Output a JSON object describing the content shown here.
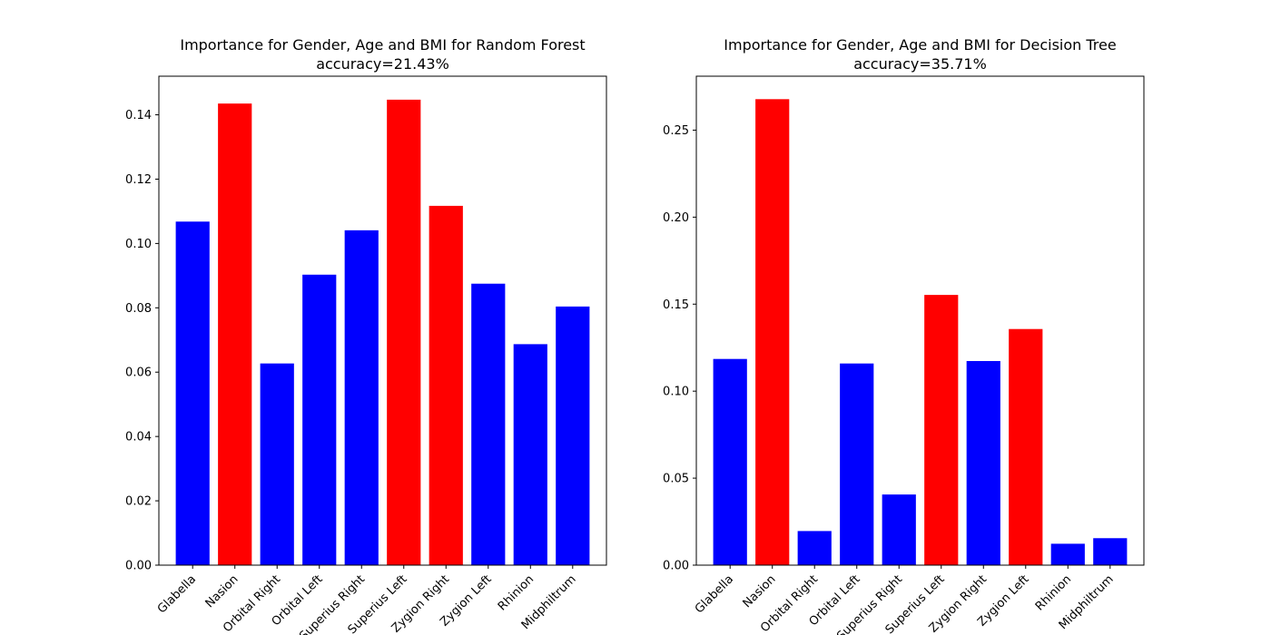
{
  "chart_data": [
    {
      "type": "bar",
      "title": "Importance for Gender, Age and BMI for Random Forest",
      "subtitle": "accuracy=21.43%",
      "xlabel": "",
      "ylabel": "",
      "ylim": [
        0,
        0.152
      ],
      "yticks": [
        "0.00",
        "0.02",
        "0.04",
        "0.06",
        "0.08",
        "0.10",
        "0.12",
        "0.14"
      ],
      "grid": false,
      "categories": [
        "Glabella",
        "Nasion",
        "Orbital Right",
        "Orbital Left",
        "Superius Right",
        "Superius Left",
        "Zygion Right",
        "Zygion Left",
        "Rhinion",
        "Midphiltrum"
      ],
      "values": [
        0.1068,
        0.1435,
        0.0627,
        0.0903,
        0.1041,
        0.1447,
        0.1117,
        0.0875,
        0.0687,
        0.0804
      ],
      "bar_colors": [
        "#0000ff",
        "#ff0000",
        "#0000ff",
        "#0000ff",
        "#0000ff",
        "#ff0000",
        "#ff0000",
        "#0000ff",
        "#0000ff",
        "#0000ff"
      ]
    },
    {
      "type": "bar",
      "title": "Importance for Gender, Age and BMI for Decision Tree",
      "subtitle": "accuracy=35.71%",
      "xlabel": "",
      "ylabel": "",
      "ylim": [
        0,
        0.281
      ],
      "yticks": [
        "0.00",
        "0.05",
        "0.10",
        "0.15",
        "0.20",
        "0.25"
      ],
      "grid": false,
      "categories": [
        "Glabella",
        "Nasion",
        "Orbital Right",
        "Orbital Left",
        "Superius Right",
        "Superius Left",
        "Zygion Right",
        "Zygion Left",
        "Rhinion",
        "Midphiltrum"
      ],
      "values": [
        0.1185,
        0.2678,
        0.0196,
        0.1159,
        0.0406,
        0.1553,
        0.1173,
        0.1357,
        0.0123,
        0.0155
      ],
      "bar_colors": [
        "#0000ff",
        "#ff0000",
        "#0000ff",
        "#0000ff",
        "#0000ff",
        "#ff0000",
        "#0000ff",
        "#ff0000",
        "#0000ff",
        "#0000ff"
      ]
    }
  ]
}
